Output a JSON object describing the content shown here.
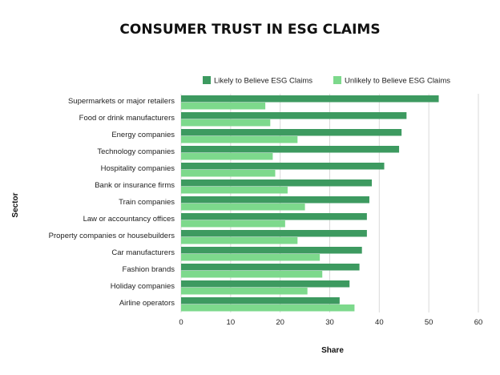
{
  "chart_data": {
    "type": "bar",
    "orientation": "horizontal",
    "title": "CONSUMER TRUST IN ESG CLAIMS",
    "xlabel": "Share",
    "ylabel": "Sector",
    "xlim": [
      0,
      60
    ],
    "xticks": [
      0,
      10,
      20,
      30,
      40,
      50,
      60
    ],
    "grid": "vertical",
    "legend_position": "top-right",
    "categories": [
      "Supermarkets or major retailers",
      "Food or drink manufacturers",
      "Energy companies",
      "Technology companies",
      "Hospitality companies",
      "Bank or insurance firms",
      "Train companies",
      "Law or accountancy offices",
      "Property companies or housebuilders",
      "Car manufacturers",
      "Fashion brands",
      "Holiday companies",
      "Airline operators"
    ],
    "series": [
      {
        "name": "Likely to Believe ESG Claims",
        "color": "#3d9a60",
        "values": [
          52,
          45.5,
          44.5,
          44,
          41,
          38.5,
          38,
          37.5,
          37.5,
          36.5,
          36,
          34,
          32
        ]
      },
      {
        "name": "Unlikely to Believe ESG Claims",
        "color": "#7dd98c",
        "values": [
          17,
          18,
          23.5,
          18.5,
          19,
          21.5,
          25,
          21,
          23.5,
          28,
          28.5,
          25.5,
          35
        ]
      }
    ]
  }
}
